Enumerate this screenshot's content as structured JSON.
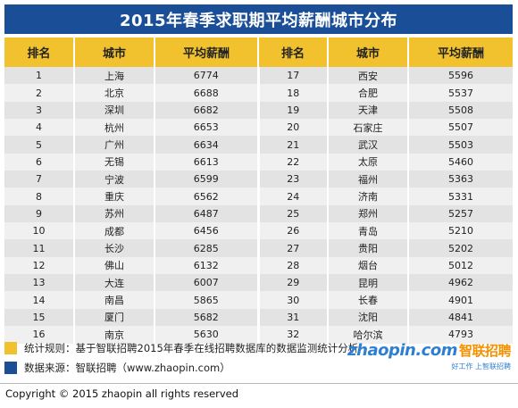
{
  "title": "2015年春季求职期平均薪酬城市分布",
  "colors": {
    "title_bg": "#1a4e96",
    "header_bg": "#f2c22e",
    "note_yellow": "#f2c22e",
    "note_blue": "#1a4e96",
    "logo_blue": "#2f7fd1",
    "logo_orange": "#f39100"
  },
  "headers": [
    "排名",
    "城市",
    "平均薪酬",
    "排名",
    "城市",
    "平均薪酬"
  ],
  "rows": [
    [
      "1",
      "上海",
      "6774",
      "17",
      "西安",
      "5596"
    ],
    [
      "2",
      "北京",
      "6688",
      "18",
      "合肥",
      "5537"
    ],
    [
      "3",
      "深圳",
      "6682",
      "19",
      "天津",
      "5508"
    ],
    [
      "4",
      "杭州",
      "6653",
      "20",
      "石家庄",
      "5507"
    ],
    [
      "5",
      "广州",
      "6634",
      "21",
      "武汉",
      "5503"
    ],
    [
      "6",
      "无锡",
      "6613",
      "22",
      "太原",
      "5460"
    ],
    [
      "7",
      "宁波",
      "6599",
      "23",
      "福州",
      "5363"
    ],
    [
      "8",
      "重庆",
      "6562",
      "24",
      "济南",
      "5331"
    ],
    [
      "9",
      "苏州",
      "6487",
      "25",
      "郑州",
      "5257"
    ],
    [
      "10",
      "成都",
      "6456",
      "26",
      "青岛",
      "5210"
    ],
    [
      "11",
      "长沙",
      "6285",
      "27",
      "贵阳",
      "5202"
    ],
    [
      "12",
      "佛山",
      "6132",
      "28",
      "烟台",
      "5012"
    ],
    [
      "13",
      "大连",
      "6007",
      "29",
      "昆明",
      "4962"
    ],
    [
      "14",
      "南昌",
      "5865",
      "30",
      "长春",
      "4901"
    ],
    [
      "15",
      "厦门",
      "5682",
      "31",
      "沈阳",
      "4841"
    ],
    [
      "16",
      "南京",
      "5630",
      "32",
      "哈尔滨",
      "4793"
    ]
  ],
  "notes": {
    "rule": "统计规则：基于智联招聘2015年春季在线招聘数据库的数据监测统计分析",
    "source": "数据来源：智联招聘（www.zhaopin.com）"
  },
  "logo": {
    "latin": "zhaopin.com",
    "chinese": "智联招聘",
    "slogan": "好工作 上智联招聘"
  },
  "copyright": "Copyright © 2015 zhaopin all rights reserved"
}
